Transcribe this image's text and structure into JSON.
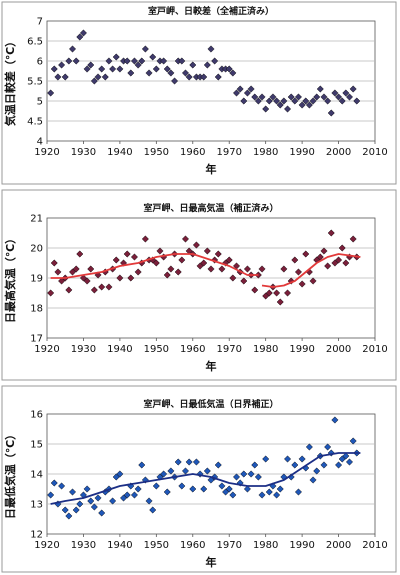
{
  "colors": {
    "panel_border": "#9a9a9a",
    "grid": "#b8b8b8",
    "axis_text": "#111111",
    "chart1_marker": "#3f3a6b",
    "chart2_marker": "#7a1f3a",
    "chart2_trend": "#e23a3a",
    "chart3_marker": "#1f57b8",
    "chart3_trend": "#1c2f86"
  },
  "chart_data": [
    {
      "type": "scatter",
      "title": "室戸岬、日較差（全補正済み）",
      "xlabel": "年",
      "ylabel": "気温日較差（℃）",
      "xlim": [
        1920,
        2010
      ],
      "ylim": [
        4,
        7
      ],
      "xticks": [
        "1920",
        "1930",
        "1940",
        "1950",
        "1960",
        "1970",
        "1980",
        "1990",
        "2000",
        "2010"
      ],
      "yticks": [
        "4",
        "4.5",
        "5",
        "5.5",
        "6",
        "6.5",
        "7"
      ],
      "grid": true,
      "marker": "diamond",
      "points": [
        [
          1921,
          5.2
        ],
        [
          1922,
          5.8
        ],
        [
          1923,
          5.6
        ],
        [
          1924,
          5.9
        ],
        [
          1925,
          5.6
        ],
        [
          1926,
          6.0
        ],
        [
          1927,
          6.3
        ],
        [
          1928,
          6.0
        ],
        [
          1929,
          6.6
        ],
        [
          1930,
          6.7
        ],
        [
          1931,
          5.8
        ],
        [
          1932,
          5.9
        ],
        [
          1933,
          5.5
        ],
        [
          1934,
          5.6
        ],
        [
          1935,
          5.8
        ],
        [
          1936,
          5.6
        ],
        [
          1937,
          6.0
        ],
        [
          1938,
          5.8
        ],
        [
          1939,
          6.1
        ],
        [
          1940,
          5.8
        ],
        [
          1941,
          6.0
        ],
        [
          1942,
          6.0
        ],
        [
          1943,
          5.7
        ],
        [
          1944,
          6.0
        ],
        [
          1945,
          5.9
        ],
        [
          1946,
          6.0
        ],
        [
          1947,
          6.3
        ],
        [
          1948,
          5.7
        ],
        [
          1949,
          6.1
        ],
        [
          1950,
          5.8
        ],
        [
          1951,
          6.0
        ],
        [
          1952,
          6.0
        ],
        [
          1953,
          5.8
        ],
        [
          1954,
          5.7
        ],
        [
          1955,
          5.5
        ],
        [
          1956,
          6.0
        ],
        [
          1957,
          6.0
        ],
        [
          1958,
          5.7
        ],
        [
          1959,
          5.6
        ],
        [
          1960,
          5.9
        ],
        [
          1961,
          5.6
        ],
        [
          1962,
          5.6
        ],
        [
          1963,
          5.6
        ],
        [
          1964,
          5.9
        ],
        [
          1965,
          6.3
        ],
        [
          1966,
          6.0
        ],
        [
          1967,
          5.6
        ],
        [
          1968,
          5.8
        ],
        [
          1969,
          5.8
        ],
        [
          1970,
          5.8
        ],
        [
          1971,
          5.7
        ],
        [
          1972,
          5.2
        ],
        [
          1973,
          5.3
        ],
        [
          1974,
          5.0
        ],
        [
          1975,
          5.2
        ],
        [
          1976,
          5.3
        ],
        [
          1977,
          5.1
        ],
        [
          1978,
          5.0
        ],
        [
          1979,
          5.1
        ],
        [
          1980,
          4.8
        ],
        [
          1981,
          5.0
        ],
        [
          1982,
          5.1
        ],
        [
          1983,
          5.0
        ],
        [
          1984,
          4.9
        ],
        [
          1985,
          5.0
        ],
        [
          1986,
          4.8
        ],
        [
          1987,
          5.1
        ],
        [
          1988,
          5.0
        ],
        [
          1989,
          5.1
        ],
        [
          1990,
          4.9
        ],
        [
          1991,
          5.0
        ],
        [
          1992,
          4.9
        ],
        [
          1993,
          5.0
        ],
        [
          1994,
          5.1
        ],
        [
          1995,
          5.3
        ],
        [
          1996,
          5.1
        ],
        [
          1997,
          5.0
        ],
        [
          1998,
          4.7
        ],
        [
          1999,
          5.2
        ],
        [
          2000,
          5.1
        ],
        [
          2001,
          5.0
        ],
        [
          2002,
          5.2
        ],
        [
          2003,
          5.1
        ],
        [
          2004,
          5.3
        ],
        [
          2005,
          5.0
        ]
      ]
    },
    {
      "type": "scatter",
      "title": "室戸岬、日最高気温（補正済み）",
      "xlabel": "年",
      "ylabel": "日最高気温（℃）",
      "xlim": [
        1920,
        2010
      ],
      "ylim": [
        17,
        21
      ],
      "xticks": [
        "1920",
        "1930",
        "1940",
        "1950",
        "1960",
        "1970",
        "1980",
        "1990",
        "2000",
        "2010"
      ],
      "yticks": [
        "17",
        "18",
        "19",
        "20",
        "21"
      ],
      "grid": true,
      "marker": "diamond",
      "points": [
        [
          1921,
          18.5
        ],
        [
          1922,
          19.5
        ],
        [
          1923,
          19.2
        ],
        [
          1924,
          18.9
        ],
        [
          1925,
          19.0
        ],
        [
          1926,
          18.6
        ],
        [
          1927,
          19.2
        ],
        [
          1928,
          19.3
        ],
        [
          1929,
          19.8
        ],
        [
          1930,
          19.0
        ],
        [
          1931,
          18.9
        ],
        [
          1932,
          19.3
        ],
        [
          1933,
          18.6
        ],
        [
          1934,
          19.1
        ],
        [
          1935,
          18.7
        ],
        [
          1936,
          19.2
        ],
        [
          1937,
          18.7
        ],
        [
          1938,
          19.3
        ],
        [
          1939,
          19.6
        ],
        [
          1940,
          19.0
        ],
        [
          1941,
          19.5
        ],
        [
          1942,
          19.8
        ],
        [
          1943,
          19.0
        ],
        [
          1944,
          19.7
        ],
        [
          1945,
          19.2
        ],
        [
          1946,
          19.5
        ],
        [
          1947,
          20.3
        ],
        [
          1948,
          19.6
        ],
        [
          1949,
          19.6
        ],
        [
          1950,
          19.5
        ],
        [
          1951,
          19.9
        ],
        [
          1952,
          19.7
        ],
        [
          1953,
          19.1
        ],
        [
          1954,
          19.3
        ],
        [
          1955,
          19.8
        ],
        [
          1956,
          19.2
        ],
        [
          1957,
          19.6
        ],
        [
          1958,
          20.3
        ],
        [
          1959,
          19.9
        ],
        [
          1960,
          19.8
        ],
        [
          1961,
          20.1
        ],
        [
          1962,
          19.4
        ],
        [
          1963,
          19.5
        ],
        [
          1964,
          19.9
        ],
        [
          1965,
          19.3
        ],
        [
          1966,
          19.6
        ],
        [
          1967,
          19.8
        ],
        [
          1968,
          19.3
        ],
        [
          1969,
          19.5
        ],
        [
          1970,
          19.6
        ],
        [
          1971,
          19.0
        ],
        [
          1972,
          19.4
        ],
        [
          1973,
          19.2
        ],
        [
          1974,
          18.9
        ],
        [
          1975,
          19.3
        ],
        [
          1976,
          19.1
        ],
        [
          1977,
          18.6
        ],
        [
          1978,
          19.1
        ],
        [
          1979,
          19.3
        ],
        [
          1980,
          18.4
        ],
        [
          1981,
          18.5
        ],
        [
          1982,
          18.7
        ],
        [
          1983,
          18.5
        ],
        [
          1984,
          18.2
        ],
        [
          1985,
          19.3
        ],
        [
          1986,
          18.5
        ],
        [
          1987,
          18.9
        ],
        [
          1988,
          19.6
        ],
        [
          1989,
          19.2
        ],
        [
          1990,
          18.8
        ],
        [
          1991,
          19.8
        ],
        [
          1992,
          19.2
        ],
        [
          1993,
          18.9
        ],
        [
          1994,
          19.6
        ],
        [
          1995,
          19.7
        ],
        [
          1996,
          19.9
        ],
        [
          1997,
          19.4
        ],
        [
          1998,
          20.5
        ],
        [
          1999,
          19.5
        ],
        [
          2000,
          19.6
        ],
        [
          2001,
          20.0
        ],
        [
          2002,
          19.5
        ],
        [
          2003,
          19.7
        ],
        [
          2004,
          20.3
        ],
        [
          2005,
          19.7
        ]
      ],
      "trend": [
        {
          "x": [
            1921,
            1925,
            1930,
            1935,
            1940,
            1945,
            1950,
            1955,
            1960,
            1965,
            1970,
            1975,
            1978
          ],
          "y": [
            19.0,
            19.0,
            19.1,
            19.2,
            19.4,
            19.5,
            19.7,
            19.8,
            19.8,
            19.6,
            19.4,
            19.1,
            19.1
          ]
        },
        {
          "x": [
            1979,
            1982,
            1985,
            1988,
            1991,
            1994,
            1997,
            2000,
            2003,
            2006
          ],
          "y": [
            18.75,
            18.7,
            18.75,
            18.9,
            19.2,
            19.5,
            19.7,
            19.8,
            19.75,
            19.7
          ]
        }
      ]
    },
    {
      "type": "scatter",
      "title": "室戸岬、日最低気温（日界補正）",
      "xlabel": "年",
      "ylabel": "日最低気温（℃）",
      "xlim": [
        1920,
        2010
      ],
      "ylim": [
        12,
        16
      ],
      "xticks": [
        "1920",
        "1930",
        "1940",
        "1950",
        "1960",
        "1970",
        "1980",
        "1990",
        "2000",
        "2010"
      ],
      "yticks": [
        "12",
        "13",
        "14",
        "15",
        "16"
      ],
      "grid": true,
      "marker": "diamond",
      "points": [
        [
          1921,
          13.3
        ],
        [
          1922,
          13.7
        ],
        [
          1923,
          13.0
        ],
        [
          1924,
          13.6
        ],
        [
          1925,
          12.8
        ],
        [
          1926,
          12.6
        ],
        [
          1927,
          13.4
        ],
        [
          1928,
          12.8
        ],
        [
          1929,
          13.0
        ],
        [
          1930,
          13.3
        ],
        [
          1931,
          13.5
        ],
        [
          1932,
          13.1
        ],
        [
          1933,
          12.9
        ],
        [
          1934,
          13.2
        ],
        [
          1935,
          12.7
        ],
        [
          1936,
          13.4
        ],
        [
          1937,
          13.5
        ],
        [
          1938,
          13.1
        ],
        [
          1939,
          13.9
        ],
        [
          1940,
          14.0
        ],
        [
          1941,
          13.2
        ],
        [
          1942,
          13.3
        ],
        [
          1943,
          13.6
        ],
        [
          1944,
          13.3
        ],
        [
          1945,
          13.5
        ],
        [
          1946,
          14.3
        ],
        [
          1947,
          13.8
        ],
        [
          1948,
          13.1
        ],
        [
          1949,
          12.8
        ],
        [
          1950,
          13.6
        ],
        [
          1951,
          13.9
        ],
        [
          1952,
          14.0
        ],
        [
          1953,
          13.4
        ],
        [
          1954,
          14.1
        ],
        [
          1955,
          13.9
        ],
        [
          1956,
          14.4
        ],
        [
          1957,
          13.6
        ],
        [
          1958,
          14.1
        ],
        [
          1959,
          14.4
        ],
        [
          1960,
          13.5
        ],
        [
          1961,
          14.4
        ],
        [
          1962,
          14.0
        ],
        [
          1963,
          13.5
        ],
        [
          1964,
          14.1
        ],
        [
          1965,
          13.8
        ],
        [
          1966,
          13.9
        ],
        [
          1967,
          14.3
        ],
        [
          1968,
          13.6
        ],
        [
          1969,
          13.4
        ],
        [
          1970,
          13.5
        ],
        [
          1971,
          13.3
        ],
        [
          1972,
          13.9
        ],
        [
          1973,
          13.7
        ],
        [
          1974,
          14.0
        ],
        [
          1975,
          13.5
        ],
        [
          1976,
          14.0
        ],
        [
          1977,
          14.3
        ],
        [
          1978,
          13.9
        ],
        [
          1979,
          13.3
        ],
        [
          1980,
          14.5
        ],
        [
          1981,
          13.4
        ],
        [
          1982,
          13.6
        ],
        [
          1983,
          13.3
        ],
        [
          1984,
          13.5
        ],
        [
          1985,
          13.9
        ],
        [
          1986,
          14.5
        ],
        [
          1987,
          13.9
        ],
        [
          1988,
          14.3
        ],
        [
          1989,
          13.4
        ],
        [
          1990,
          14.5
        ],
        [
          1991,
          14.2
        ],
        [
          1992,
          14.9
        ],
        [
          1993,
          13.8
        ],
        [
          1994,
          14.1
        ],
        [
          1995,
          14.6
        ],
        [
          1996,
          14.3
        ],
        [
          1997,
          14.9
        ],
        [
          1998,
          14.7
        ],
        [
          1999,
          15.8
        ],
        [
          2000,
          14.3
        ],
        [
          2001,
          14.5
        ],
        [
          2002,
          14.6
        ],
        [
          2003,
          14.4
        ],
        [
          2004,
          15.1
        ],
        [
          2005,
          14.7
        ]
      ],
      "trend": [
        {
          "x": [
            1921,
            1925,
            1930,
            1935,
            1940,
            1945,
            1950,
            1955,
            1960,
            1965,
            1970,
            1975,
            1980,
            1985,
            1990,
            1995,
            2000,
            2006
          ],
          "y": [
            13.0,
            13.1,
            13.2,
            13.4,
            13.6,
            13.7,
            13.8,
            13.9,
            14.0,
            13.9,
            13.7,
            13.6,
            13.6,
            13.8,
            14.2,
            14.6,
            14.7,
            14.7
          ]
        }
      ]
    }
  ]
}
